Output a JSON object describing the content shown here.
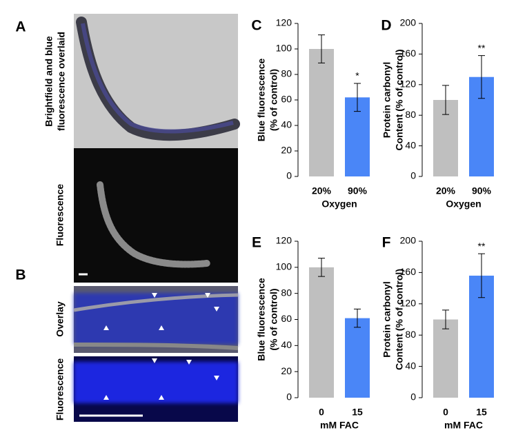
{
  "panel_a": {
    "label": "A",
    "top_caption": [
      "Brightfield and blue",
      "fluorescence overlaid"
    ],
    "bottom_caption": "Fluorescence"
  },
  "panel_b": {
    "label": "B",
    "top_caption": "Overlay",
    "bottom_caption": "Fluorescence"
  },
  "chart_data": [
    {
      "type": "bar",
      "label": "C",
      "ylabel": [
        "Blue fluorescence",
        "(% of control)"
      ],
      "xlabel": "Oxygen",
      "categories": [
        "20%",
        "90%"
      ],
      "values": [
        100,
        62
      ],
      "errors": [
        11,
        11
      ],
      "annotations": [
        null,
        "*"
      ],
      "colors": [
        "#bfbfbf",
        "#4a86f7"
      ],
      "ylim": [
        0,
        120
      ],
      "yticks": [
        0,
        20,
        40,
        60,
        80,
        100,
        120
      ]
    },
    {
      "type": "bar",
      "label": "D",
      "ylabel": [
        "Protein carbonyl",
        "Content (% of control)"
      ],
      "xlabel": "Oxygen",
      "categories": [
        "20%",
        "90%"
      ],
      "values": [
        100,
        130
      ],
      "errors": [
        19,
        28
      ],
      "annotations": [
        null,
        "**"
      ],
      "colors": [
        "#bfbfbf",
        "#4a86f7"
      ],
      "ylim": [
        0,
        200
      ],
      "yticks": [
        0,
        40,
        80,
        120,
        160,
        200
      ]
    },
    {
      "type": "bar",
      "label": "E",
      "ylabel": [
        "Blue fluorescence",
        "(% of control)"
      ],
      "xlabel": "mM FAC",
      "categories": [
        "0",
        "15"
      ],
      "values": [
        100,
        61
      ],
      "errors": [
        7,
        7
      ],
      "annotations": [
        null,
        null
      ],
      "colors": [
        "#bfbfbf",
        "#4a86f7"
      ],
      "ylim": [
        0,
        120
      ],
      "yticks": [
        0,
        20,
        40,
        60,
        80,
        100,
        120
      ]
    },
    {
      "type": "bar",
      "label": "F",
      "ylabel": [
        "Protein carbonyl",
        "Content (% of control)"
      ],
      "xlabel": "mM FAC",
      "categories": [
        "0",
        "15"
      ],
      "values": [
        100,
        156
      ],
      "errors": [
        12,
        28
      ],
      "annotations": [
        null,
        "**"
      ],
      "colors": [
        "#bfbfbf",
        "#4a86f7"
      ],
      "ylim": [
        0,
        200
      ],
      "yticks": [
        0,
        40,
        80,
        120,
        160,
        200
      ]
    }
  ]
}
